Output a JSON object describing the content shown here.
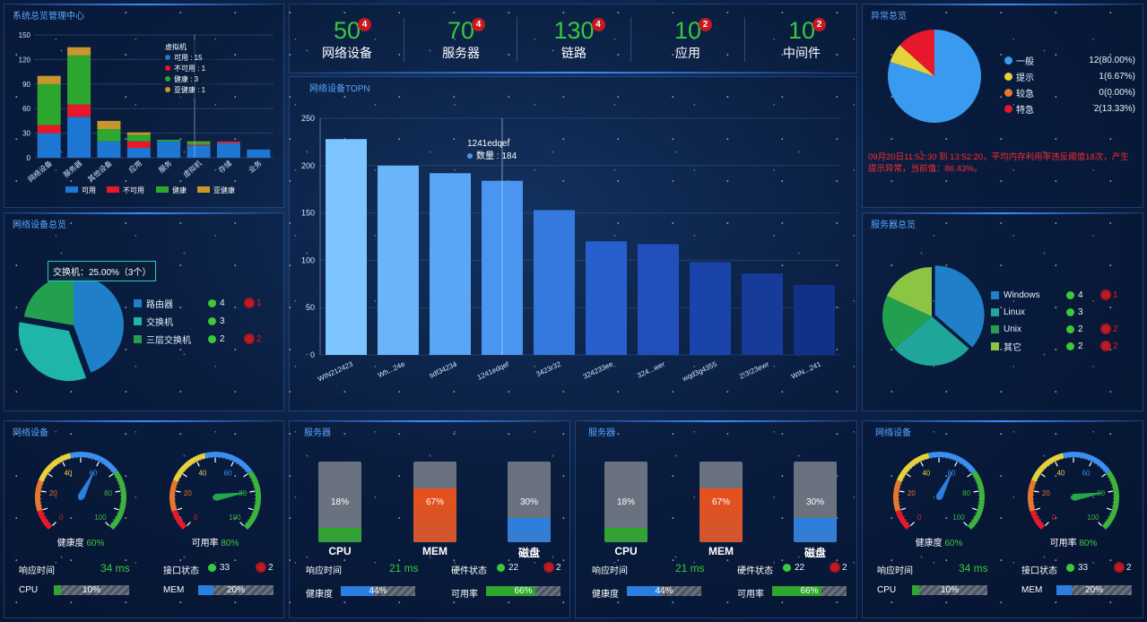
{
  "sys": {
    "title": "系统总览管理中心",
    "yticks": [
      "150",
      "120",
      "90",
      "60",
      "30",
      "0"
    ],
    "categories": [
      "网络设备",
      "服务器",
      "其他设备",
      "应用",
      "服务",
      "虚拟机",
      "存储",
      "业务"
    ],
    "series": [
      {
        "name": "可用",
        "color": "#1f77d4",
        "values": [
          30,
          50,
          20,
          12,
          20,
          15,
          18,
          10
        ]
      },
      {
        "name": "不可用",
        "color": "#e8182c",
        "values": [
          10,
          15,
          0,
          8,
          0,
          1,
          2,
          0
        ]
      },
      {
        "name": "健康",
        "color": "#2ea72e",
        "values": [
          50,
          60,
          15,
          8,
          2,
          3,
          0,
          0
        ]
      },
      {
        "name": "亚健康",
        "color": "#c8962c",
        "values": [
          10,
          10,
          10,
          3,
          0,
          1,
          0,
          0
        ]
      }
    ],
    "tooltip": {
      "title": "虚拟机",
      "lines": [
        "可用 : 15",
        "不可用 : 1",
        "健康 : 3",
        "亚健康 : 1"
      ]
    }
  },
  "stats": [
    {
      "num": "50",
      "badge": "4",
      "label": "网络设备"
    },
    {
      "num": "70",
      "badge": "4",
      "label": "服务器"
    },
    {
      "num": "130",
      "badge": "4",
      "label": "链路"
    },
    {
      "num": "10",
      "badge": "2",
      "label": "应用"
    },
    {
      "num": "10",
      "badge": "2",
      "label": "中间件"
    }
  ],
  "abn": {
    "title": "异常总览",
    "items": [
      {
        "label": "一般",
        "value": "12(80.00%)",
        "color": "#3a9af0",
        "v": 12
      },
      {
        "label": "提示",
        "value": "1(6.67%)",
        "color": "#e5d23a",
        "v": 1
      },
      {
        "label": "较急",
        "value": "0(0.00%)",
        "color": "#e8762c",
        "v": 0
      },
      {
        "label": "特急",
        "value": "2(13.33%)",
        "color": "#e8182c",
        "v": 2
      }
    ],
    "message": "09月20日11:52:30 到 13:52:20，平均内存利用率违反阈值18次，产生提示异常，当前值：86.43%。"
  },
  "netov": {
    "title": "网络设备总览",
    "tooltip": "交换机：25.00%（3个）",
    "items": [
      {
        "label": "路由器",
        "ok": "4",
        "bad": "1",
        "color": "#1f7fc8",
        "v": 4
      },
      {
        "label": "交换机",
        "ok": "3",
        "bad": "",
        "color": "#1fb5a8",
        "v": 3
      },
      {
        "label": "三层交换机",
        "ok": "2",
        "bad": "2",
        "color": "#22a050",
        "v": 2
      }
    ]
  },
  "top": {
    "title": "网络设备TOPN",
    "yticks": [
      "250",
      "200",
      "150",
      "100",
      "50",
      "0"
    ],
    "chart_data": {
      "type": "bar",
      "categories": [
        "WIN212423",
        "Wh...24e",
        "sdf34234",
        "1241edqef",
        "3423r32",
        "324233ee",
        "324...wer",
        "wqd3g4355",
        "2!3!23ewr",
        "WIN...241"
      ],
      "values": [
        228,
        200,
        192,
        184,
        153,
        120,
        117,
        98,
        86,
        74
      ],
      "ylim": [
        0,
        250
      ]
    },
    "colors": [
      "#7cc4ff",
      "#6ab4fa",
      "#5aa6f6",
      "#4a95f0",
      "#3579de",
      "#275fcc",
      "#2150bd",
      "#1a44aa",
      "#163b98",
      "#113186"
    ],
    "tooltip": {
      "name": "1241edqef",
      "line": "数量 : 184"
    }
  },
  "srvov": {
    "title": "服务器总览",
    "items": [
      {
        "label": "Windows",
        "ok": "4",
        "bad": "1",
        "color": "#1f7fc8",
        "v": 4
      },
      {
        "label": "Linux",
        "ok": "3",
        "bad": "",
        "color": "#1fa59a",
        "v": 3
      },
      {
        "label": "Unix",
        "ok": "2",
        "bad": "2",
        "color": "#22a050",
        "v": 2
      },
      {
        "label": "其它",
        "ok": "2",
        "bad": "2",
        "color": "#8cc444",
        "v": 2
      }
    ]
  },
  "b1": {
    "title": "网络设备",
    "g1": {
      "label": "健康度",
      "value": "60%",
      "v": 60
    },
    "g2": {
      "label": "可用率",
      "value": "80%",
      "v": 80
    },
    "ticks": [
      "0",
      "20",
      "40",
      "60",
      "80",
      "100"
    ],
    "resp_label": "响应时间",
    "resp": "34 ms",
    "iface_label": "接口状态",
    "iface_ok": "33",
    "iface_bad": "2",
    "cpu_label": "CPU",
    "cpu": "10%",
    "cpu_v": 10,
    "mem_label": "MEM",
    "mem": "20%",
    "mem_v": 20
  },
  "b2": {
    "title": "服务器",
    "tanks": [
      {
        "label": "CPU",
        "pct": "18%",
        "v": 18
      },
      {
        "label": "MEM",
        "pct": "67%",
        "v": 67
      },
      {
        "label": "磁盘",
        "pct": "30%",
        "v": 30
      }
    ],
    "resp_label": "响应时间",
    "resp": "21 ms",
    "hw_label": "硬件状态",
    "hw_ok": "22",
    "hw_bad": "2",
    "health_label": "健康度",
    "health": "44%",
    "health_v": 44,
    "avail_label": "可用率",
    "avail": "66%",
    "avail_v": 66
  },
  "b3": {
    "title": "服务器",
    "tanks": [
      {
        "label": "CPU",
        "pct": "18%",
        "v": 18
      },
      {
        "label": "MEM",
        "pct": "67%",
        "v": 67
      },
      {
        "label": "磁盘",
        "pct": "30%",
        "v": 30
      }
    ],
    "resp_label": "响应时间",
    "resp": "21 ms",
    "hw_label": "硬件状态",
    "hw_ok": "22",
    "hw_bad": "2",
    "health_label": "健康度",
    "health": "44%",
    "health_v": 44,
    "avail_label": "可用率",
    "avail": "66%",
    "avail_v": 66
  },
  "b4": {
    "title": "网络设备",
    "g1": {
      "label": "健康度",
      "value": "60%",
      "v": 60
    },
    "g2": {
      "label": "可用率",
      "value": "80%",
      "v": 80
    },
    "ticks": [
      "0",
      "20",
      "40",
      "60",
      "80",
      "100"
    ],
    "resp_label": "响应时间",
    "resp": "34 ms",
    "iface_label": "接口状态",
    "iface_ok": "33",
    "iface_bad": "2",
    "cpu_label": "CPU",
    "cpu": "10%",
    "cpu_v": 10,
    "mem_label": "MEM",
    "mem": "20%",
    "mem_v": 20
  }
}
